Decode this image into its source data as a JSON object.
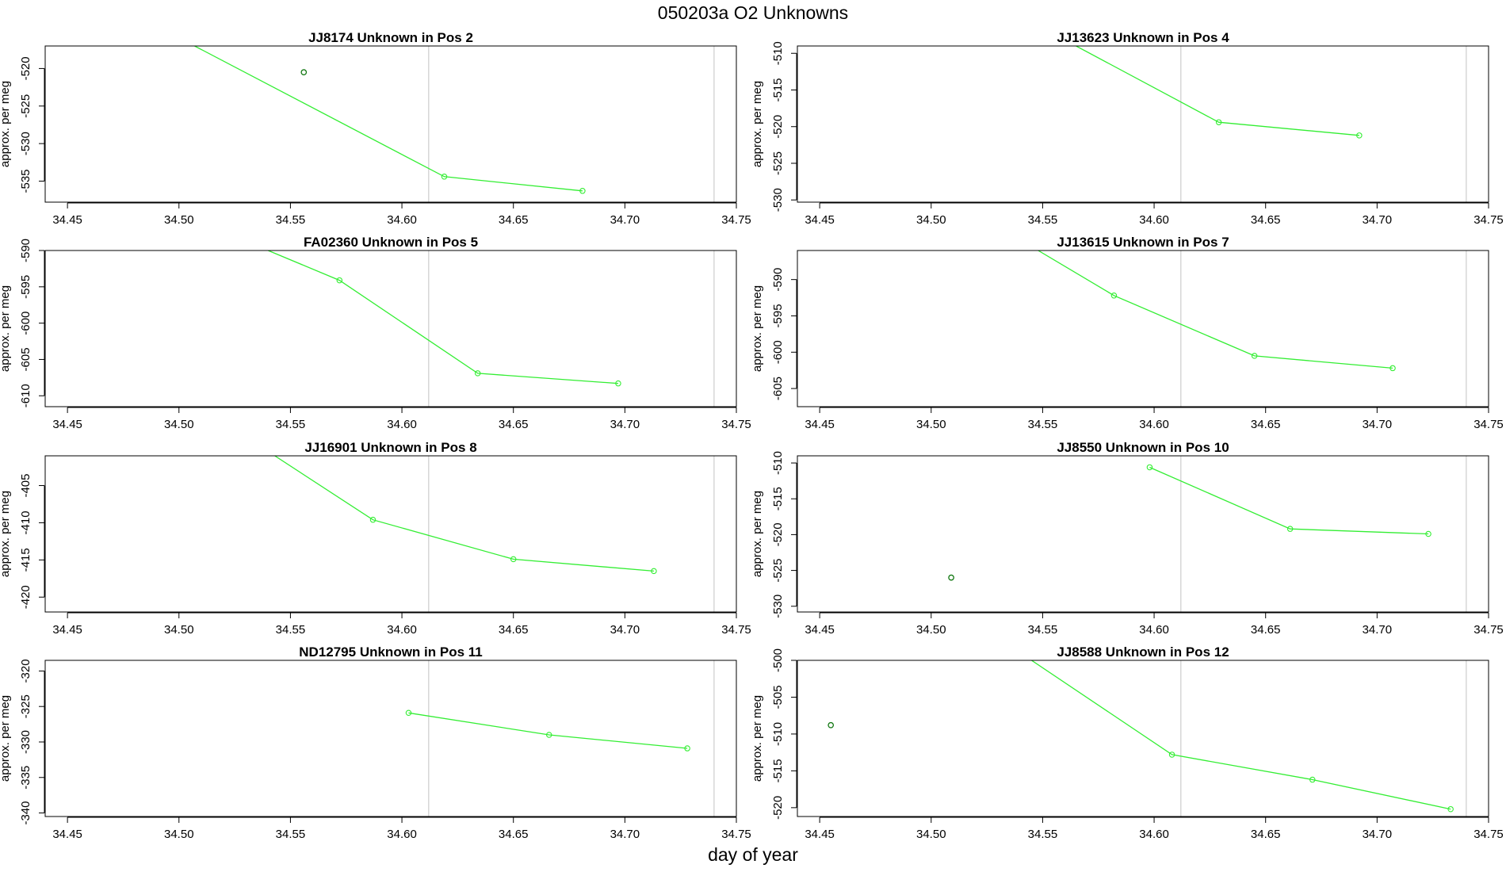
{
  "page_title": "050203a  O2 Unknowns",
  "xlabel": "day of year",
  "chart_data": [
    {
      "type": "line",
      "title": "JJ8174    Unknown in Pos 2",
      "ylabel": "approx. per meg",
      "xlim": [
        34.44,
        34.75
      ],
      "ylim": [
        -537.8,
        -517
      ],
      "x_ticks": [
        "34.45",
        "34.50",
        "34.55",
        "34.60",
        "34.65",
        "34.70",
        "34.75"
      ],
      "y_ticks": [
        "-535",
        "-530",
        "-525",
        "-520"
      ],
      "vlines": [
        34.612,
        34.74
      ],
      "line_series": {
        "x": [
          34.507,
          34.619,
          34.681
        ],
        "y": [
          -517,
          -534.4,
          -536.3
        ]
      },
      "line_markers": [
        [
          34.619,
          -534.4
        ],
        [
          34.681,
          -536.3
        ]
      ],
      "other_points": [
        [
          34.556,
          -520.5
        ]
      ],
      "colors": {
        "line": "#33ee33",
        "other": "#117711",
        "vline": "#cccccc"
      }
    },
    {
      "type": "line",
      "title": "JJ13623    Unknown in Pos 4",
      "ylabel": "approx. per meg",
      "xlim": [
        34.44,
        34.75
      ],
      "ylim": [
        -530.3,
        -509
      ],
      "x_ticks": [
        "34.45",
        "34.50",
        "34.55",
        "34.60",
        "34.65",
        "34.70",
        "34.75"
      ],
      "y_ticks": [
        "-530",
        "-525",
        "-520",
        "-515",
        "-510"
      ],
      "vlines": [
        34.612,
        34.74
      ],
      "line_series": {
        "x": [
          34.565,
          34.629,
          34.692
        ],
        "y": [
          -509,
          -519.4,
          -521.2
        ]
      },
      "line_markers": [
        [
          34.629,
          -519.4
        ],
        [
          34.692,
          -521.2
        ]
      ],
      "other_points": [],
      "colors": {
        "line": "#33ee33",
        "other": "#117711",
        "vline": "#cccccc"
      }
    },
    {
      "type": "line",
      "title": "FA02360    Unknown in Pos 5",
      "ylabel": "approx. per meg",
      "xlim": [
        34.44,
        34.75
      ],
      "ylim": [
        -611.5,
        -590
      ],
      "x_ticks": [
        "34.45",
        "34.50",
        "34.55",
        "34.60",
        "34.65",
        "34.70",
        "34.75"
      ],
      "y_ticks": [
        "-610",
        "-605",
        "-600",
        "-595",
        "-590"
      ],
      "vlines": [
        34.612,
        34.74
      ],
      "line_series": {
        "x": [
          34.54,
          34.572,
          34.634,
          34.697
        ],
        "y": [
          -590,
          -594.1,
          -606.9,
          -608.3
        ]
      },
      "line_markers": [
        [
          34.572,
          -594.1
        ],
        [
          34.634,
          -606.9
        ],
        [
          34.697,
          -608.3
        ]
      ],
      "other_points": [],
      "colors": {
        "line": "#33ee33",
        "other": "#117711",
        "vline": "#cccccc"
      }
    },
    {
      "type": "line",
      "title": "JJ13615    Unknown in Pos 7",
      "ylabel": "approx. per meg",
      "xlim": [
        34.44,
        34.75
      ],
      "ylim": [
        -607.5,
        -586
      ],
      "x_ticks": [
        "34.45",
        "34.50",
        "34.55",
        "34.60",
        "34.65",
        "34.70",
        "34.75"
      ],
      "y_ticks": [
        "-605",
        "-600",
        "-595",
        "-590"
      ],
      "vlines": [
        34.612,
        34.74
      ],
      "line_series": {
        "x": [
          34.548,
          34.582,
          34.645,
          34.707
        ],
        "y": [
          -586,
          -592.2,
          -600.5,
          -602.2
        ]
      },
      "line_markers": [
        [
          34.582,
          -592.2
        ],
        [
          34.645,
          -600.5
        ],
        [
          34.707,
          -602.2
        ]
      ],
      "other_points": [],
      "colors": {
        "line": "#33ee33",
        "other": "#117711",
        "vline": "#cccccc"
      }
    },
    {
      "type": "line",
      "title": "JJ16901    Unknown in Pos 8",
      "ylabel": "approx. per meg",
      "xlim": [
        34.44,
        34.75
      ],
      "ylim": [
        -422,
        -401
      ],
      "x_ticks": [
        "34.45",
        "34.50",
        "34.55",
        "34.60",
        "34.65",
        "34.70",
        "34.75"
      ],
      "y_ticks": [
        "-420",
        "-415",
        "-410",
        "-405"
      ],
      "vlines": [
        34.612,
        34.74
      ],
      "line_series": {
        "x": [
          34.543,
          34.587,
          34.65,
          34.713
        ],
        "y": [
          -401,
          -409.6,
          -414.9,
          -416.5
        ]
      },
      "line_markers": [
        [
          34.587,
          -409.6
        ],
        [
          34.65,
          -414.9
        ],
        [
          34.713,
          -416.5
        ]
      ],
      "other_points": [],
      "colors": {
        "line": "#33ee33",
        "other": "#117711",
        "vline": "#cccccc"
      }
    },
    {
      "type": "line",
      "title": "JJ8550    Unknown in Pos 10",
      "ylabel": "approx. per meg",
      "xlim": [
        34.44,
        34.75
      ],
      "ylim": [
        -530.8,
        -509
      ],
      "x_ticks": [
        "34.45",
        "34.50",
        "34.55",
        "34.60",
        "34.65",
        "34.70",
        "34.75"
      ],
      "y_ticks": [
        "-530",
        "-525",
        "-520",
        "-515",
        "-510"
      ],
      "vlines": [
        34.612,
        34.74
      ],
      "line_series": {
        "x": [
          34.598,
          34.661,
          34.723
        ],
        "y": [
          -510.6,
          -519.2,
          -519.9
        ]
      },
      "line_markers": [
        [
          34.598,
          -510.6
        ],
        [
          34.661,
          -519.2
        ],
        [
          34.723,
          -519.9
        ]
      ],
      "other_points": [
        [
          34.509,
          -526.0
        ]
      ],
      "colors": {
        "line": "#33ee33",
        "other": "#117711",
        "vline": "#cccccc"
      }
    },
    {
      "type": "line",
      "title": "ND12795    Unknown in Pos 11",
      "ylabel": "approx. per meg",
      "xlim": [
        34.44,
        34.75
      ],
      "ylim": [
        -340.5,
        -318.5
      ],
      "x_ticks": [
        "34.45",
        "34.50",
        "34.55",
        "34.60",
        "34.65",
        "34.70",
        "34.75"
      ],
      "y_ticks": [
        "-340",
        "-335",
        "-330",
        "-325",
        "-320"
      ],
      "vlines": [
        34.612,
        34.74
      ],
      "line_series": {
        "x": [
          34.603,
          34.666,
          34.728
        ],
        "y": [
          -325.9,
          -329.0,
          -330.9
        ]
      },
      "line_markers": [
        [
          34.603,
          -325.9
        ],
        [
          34.666,
          -329.0
        ],
        [
          34.728,
          -330.9
        ]
      ],
      "other_points": [],
      "colors": {
        "line": "#33ee33",
        "other": "#117711",
        "vline": "#cccccc"
      }
    },
    {
      "type": "line",
      "title": "JJ8588    Unknown in Pos 12",
      "ylabel": "approx. per meg",
      "xlim": [
        34.44,
        34.75
      ],
      "ylim": [
        -521.2,
        -500
      ],
      "x_ticks": [
        "34.45",
        "34.50",
        "34.55",
        "34.60",
        "34.65",
        "34.70",
        "34.75"
      ],
      "y_ticks": [
        "-520",
        "-515",
        "-510",
        "-505",
        "-500"
      ],
      "vlines": [
        34.612,
        34.74
      ],
      "line_series": {
        "x": [
          34.545,
          34.608,
          34.671,
          34.733
        ],
        "y": [
          -500,
          -512.8,
          -516.2,
          -520.2
        ]
      },
      "line_markers": [
        [
          34.608,
          -512.8
        ],
        [
          34.671,
          -516.2
        ],
        [
          34.733,
          -520.2
        ]
      ],
      "other_points": [
        [
          34.455,
          -508.8
        ]
      ],
      "colors": {
        "line": "#33ee33",
        "other": "#117711",
        "vline": "#cccccc"
      }
    }
  ]
}
